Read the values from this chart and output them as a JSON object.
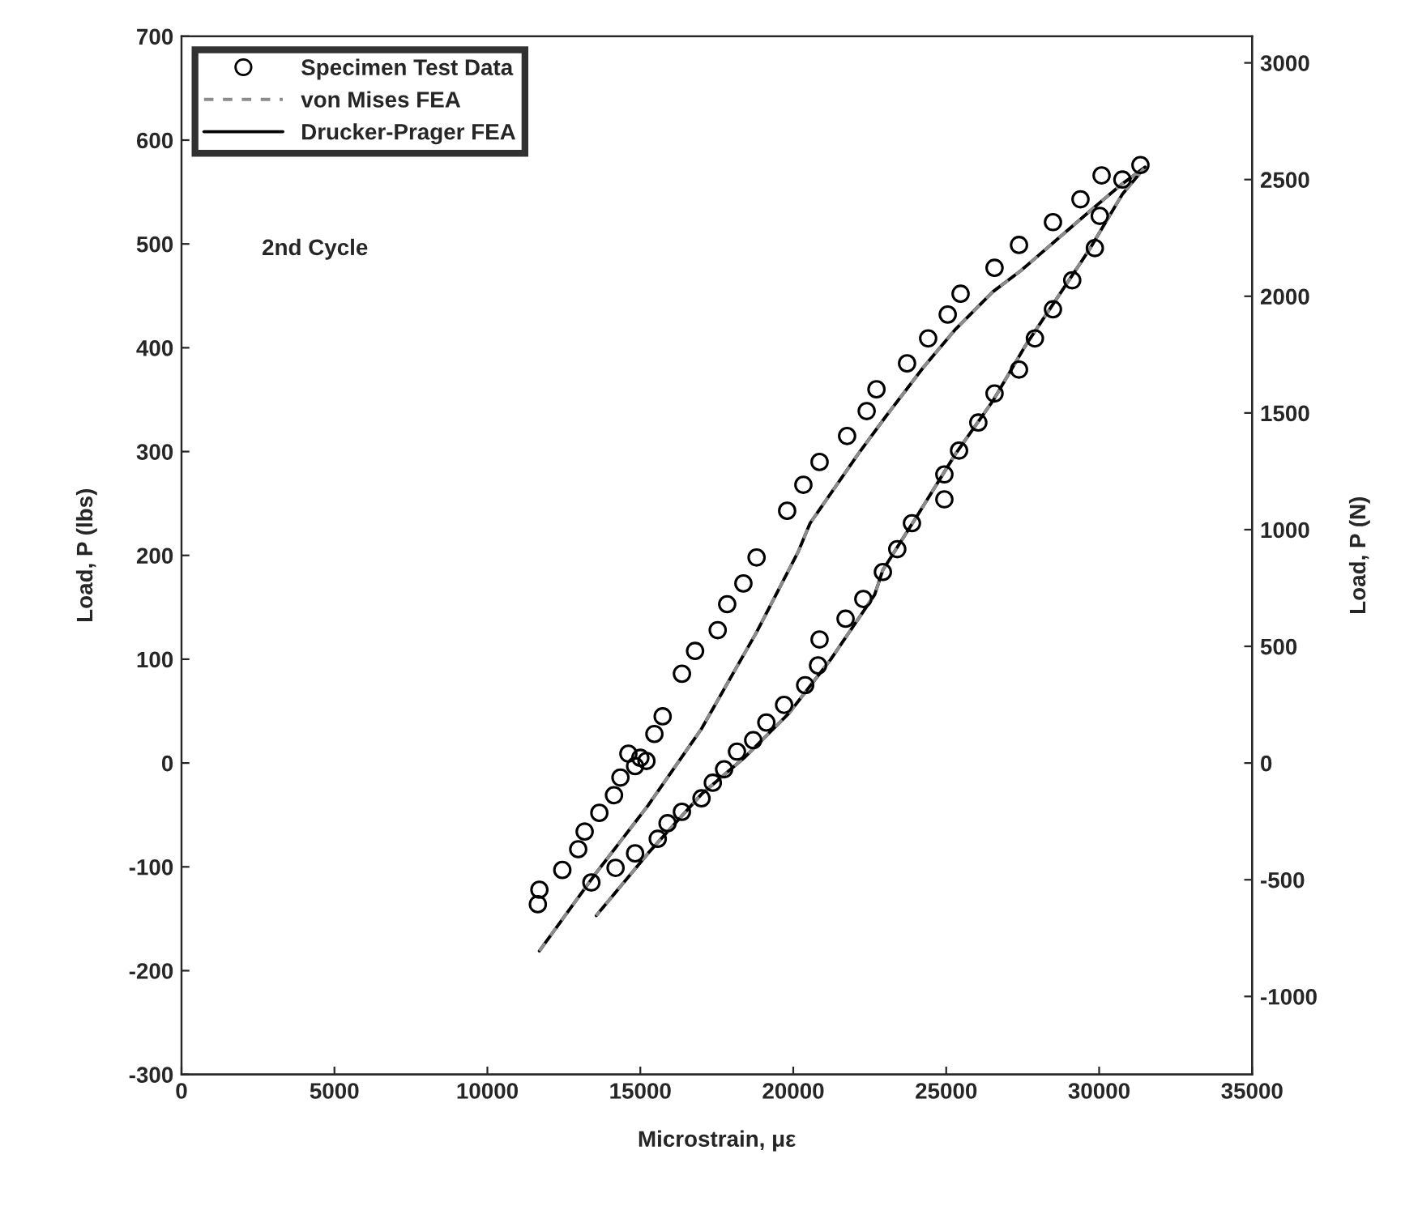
{
  "chart_data": {
    "type": "scatter",
    "xlabel": "Microstrain, με",
    "ylabel": "Load, P (lbs)",
    "y2label": "Load, P (N)",
    "annotations": [
      "2nd Cycle"
    ],
    "xlim": [
      0,
      35000
    ],
    "xticks": [
      0,
      5000,
      10000,
      15000,
      20000,
      25000,
      30000,
      35000
    ],
    "ylim": [
      -300,
      700
    ],
    "yticks": [
      -300,
      -200,
      -100,
      0,
      100,
      200,
      300,
      400,
      500,
      600,
      700
    ],
    "y2lim": [
      -1334.4,
      3113.8
    ],
    "y2ticks": [
      -1000,
      -500,
      0,
      500,
      1000,
      1500,
      2000,
      2500,
      3000
    ],
    "grid": false,
    "legend": "top left",
    "series": [
      {
        "name": "Specimen Test Data",
        "marker": "circle",
        "color": "#000000",
        "x": [
          11650,
          11700,
          12450,
          12970,
          13180,
          13400,
          13660,
          14140,
          14350,
          14610,
          14830,
          15000,
          15200,
          15460,
          15730,
          16360,
          16790,
          17530,
          17840,
          18370,
          18800,
          19800,
          20330,
          20860,
          21760,
          22400,
          22720,
          23720,
          24410,
          25050,
          25470,
          26580,
          27380,
          28490,
          29390,
          30080,
          30760,
          31350,
          30020,
          29860,
          29120,
          28490,
          27900,
          27380,
          26580,
          26050,
          25420,
          24940,
          24940,
          23880,
          23400,
          22930,
          22290,
          21710,
          20860,
          20810,
          20390,
          19700,
          19120,
          18690,
          18160,
          17740,
          17370,
          17000,
          16360,
          15890,
          15570,
          14830,
          14190
        ],
        "values": [
          -136,
          -122,
          -103,
          -83,
          -66,
          -115,
          -48,
          -31,
          -14,
          9,
          -3,
          5,
          2,
          28,
          45,
          86,
          108,
          128,
          153,
          173,
          198,
          243,
          268,
          290,
          315,
          339,
          360,
          385,
          409,
          432,
          452,
          477,
          499,
          521,
          543,
          566,
          562,
          576,
          527,
          496,
          465,
          437,
          409,
          379,
          356,
          328,
          301,
          278,
          254,
          231,
          206,
          184,
          158,
          139,
          119,
          94,
          75,
          56,
          39,
          22,
          11,
          -6,
          -19,
          -34,
          -47,
          -58,
          -73,
          -87,
          -101
        ]
      },
      {
        "name": "von Mises FEA",
        "type": "line",
        "marker": "none",
        "line_style": "dashed",
        "color": "#8c8c8c",
        "x": [
          11700,
          13500,
          15250,
          17000,
          18800,
          20170,
          20550,
          22130,
          23030,
          24250,
          25310,
          26530,
          27430,
          28650,
          29710,
          30760,
          31500,
          30760,
          29710,
          28650,
          27590,
          26530,
          25310,
          24090,
          22930,
          22660,
          21230,
          19860,
          18430,
          17000,
          15250,
          13560
        ],
        "values": [
          -181,
          -108,
          -41,
          33,
          126,
          204,
          231,
          298,
          334,
          381,
          418,
          454,
          474,
          505,
          532,
          558,
          574,
          548,
          496,
          449,
          402,
          349,
          298,
          240,
          186,
          162,
          100,
          48,
          6,
          -30,
          -87,
          -147
        ]
      },
      {
        "name": "Drucker-Prager FEA",
        "type": "line",
        "marker": "none",
        "line_style": "solid",
        "color": "#000000",
        "x": [
          11700,
          13500,
          15250,
          17000,
          18800,
          20170,
          20550,
          22130,
          23030,
          24250,
          25310,
          26530,
          27430,
          28650,
          29710,
          30760,
          31500,
          30760,
          29710,
          28650,
          27590,
          26530,
          25310,
          24090,
          22930,
          22660,
          21230,
          19860,
          18430,
          17000,
          15250,
          13560
        ],
        "values": [
          -181,
          -108,
          -41,
          33,
          126,
          204,
          231,
          298,
          334,
          381,
          418,
          454,
          474,
          505,
          532,
          558,
          574,
          548,
          496,
          449,
          402,
          349,
          298,
          240,
          186,
          162,
          100,
          48,
          6,
          -30,
          -87,
          -147
        ]
      }
    ]
  }
}
